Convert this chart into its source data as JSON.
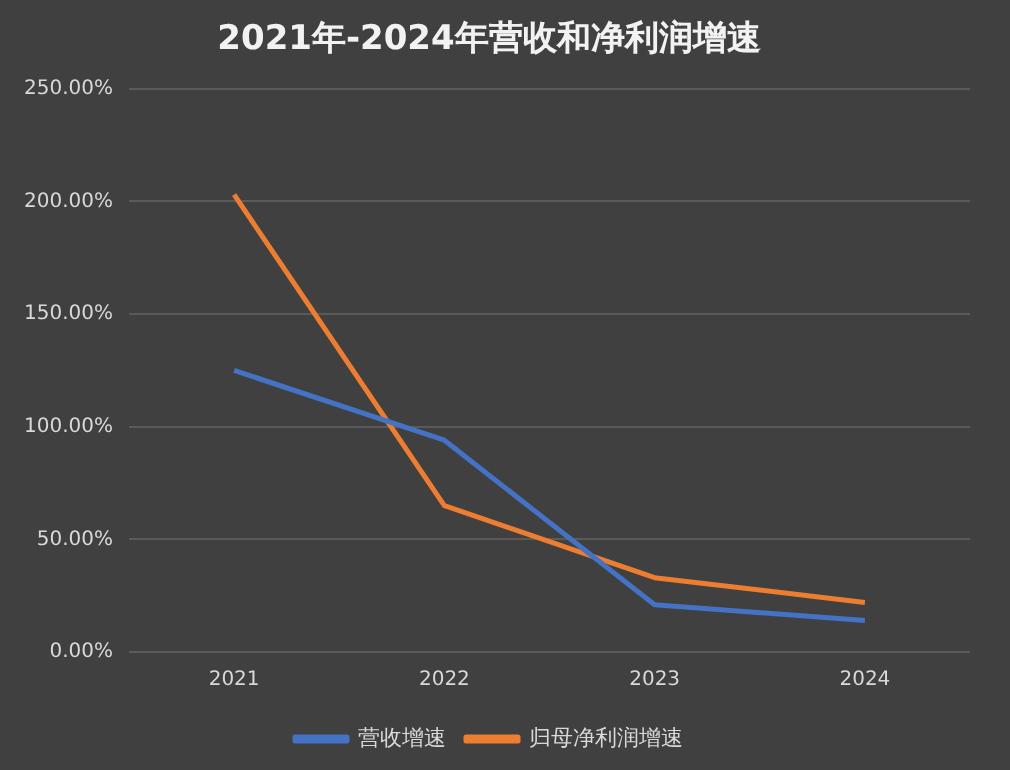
{
  "chart_data": {
    "type": "line",
    "title": "2021年-2024年营收和净利润增速",
    "categories": [
      "2021",
      "2022",
      "2023",
      "2024"
    ],
    "series": [
      {
        "name": "营收增速",
        "color": "#4472c4",
        "values": [
          125,
          94,
          21,
          14
        ]
      },
      {
        "name": "归母净利润增速",
        "color": "#ed7d31",
        "values": [
          203,
          65,
          33,
          22
        ]
      }
    ],
    "ylim": [
      0,
      250
    ],
    "yticks": [
      {
        "value": 0,
        "label": "0.00%"
      },
      {
        "value": 50,
        "label": "50.00%"
      },
      {
        "value": 100,
        "label": "100.00%"
      },
      {
        "value": 150,
        "label": "150.00%"
      },
      {
        "value": 200,
        "label": "200.00%"
      },
      {
        "value": 250,
        "label": "250.00%"
      }
    ],
    "grid": "y",
    "legend": "bottom",
    "marker": "none",
    "line_style": "solid"
  }
}
